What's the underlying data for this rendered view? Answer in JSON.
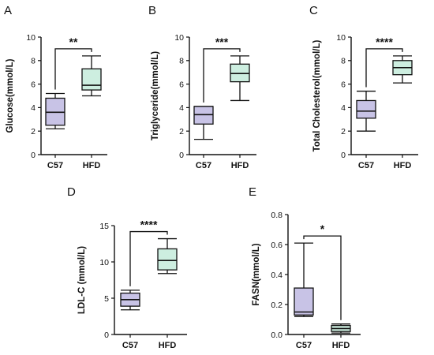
{
  "chart_data": [
    {
      "type": "box",
      "panel": "A",
      "ylabel": "Glucose(mmol/L)",
      "ylim": [
        0,
        10
      ],
      "yticks": [
        "0",
        "2",
        "4",
        "6",
        "8",
        "10"
      ],
      "categories": [
        "C57",
        "HFD"
      ],
      "boxes": [
        {
          "min": 2.2,
          "q1": 2.5,
          "median": 3.6,
          "q3": 4.8,
          "max": 5.2
        },
        {
          "min": 5.0,
          "q1": 5.5,
          "median": 5.9,
          "q3": 7.3,
          "max": 8.4
        }
      ],
      "significance": "**",
      "colors": [
        "#c8c3e6",
        "#cdeee0"
      ]
    },
    {
      "type": "box",
      "panel": "B",
      "ylabel": "Triglyceride(mmol/L)",
      "ylim": [
        0,
        10
      ],
      "yticks": [
        "0",
        "2",
        "4",
        "6",
        "8",
        "10"
      ],
      "categories": [
        "C57",
        "HFD"
      ],
      "boxes": [
        {
          "min": 1.3,
          "q1": 2.6,
          "median": 3.4,
          "q3": 4.1,
          "max": 4.1
        },
        {
          "min": 4.6,
          "q1": 6.2,
          "median": 6.9,
          "q3": 7.7,
          "max": 8.4
        }
      ],
      "significance": "***",
      "colors": [
        "#c8c3e6",
        "#cdeee0"
      ]
    },
    {
      "type": "box",
      "panel": "C",
      "ylabel": "Total Cholesterol(mmol/L)",
      "ylim": [
        0,
        10
      ],
      "yticks": [
        "0",
        "2",
        "4",
        "6",
        "8",
        "10"
      ],
      "categories": [
        "C57",
        "HFD"
      ],
      "boxes": [
        {
          "min": 2.0,
          "q1": 3.1,
          "median": 3.7,
          "q3": 4.6,
          "max": 5.4
        },
        {
          "min": 6.1,
          "q1": 6.8,
          "median": 7.4,
          "q3": 8.0,
          "max": 8.4
        }
      ],
      "significance": "****",
      "colors": [
        "#c8c3e6",
        "#cdeee0"
      ]
    },
    {
      "type": "box",
      "panel": "D",
      "ylabel": "LDL-C (mmol/L)",
      "ylim": [
        0,
        15
      ],
      "yticks": [
        "0",
        "5",
        "10",
        "15"
      ],
      "categories": [
        "C57",
        "HFD"
      ],
      "boxes": [
        {
          "min": 3.4,
          "q1": 3.9,
          "median": 4.8,
          "q3": 5.7,
          "max": 6.1
        },
        {
          "min": 8.4,
          "q1": 8.9,
          "median": 10.2,
          "q3": 11.8,
          "max": 13.2
        }
      ],
      "significance": "****",
      "colors": [
        "#c8c3e6",
        "#cdeee0"
      ]
    },
    {
      "type": "box",
      "panel": "E",
      "ylabel": "FASN(mmol/L)",
      "ylim": [
        0,
        0.8
      ],
      "yticks": [
        "0.0",
        "0.2",
        "0.4",
        "0.6",
        "0.8"
      ],
      "categories": [
        "C57",
        "HFD"
      ],
      "boxes": [
        {
          "min": 0.12,
          "q1": 0.13,
          "median": 0.15,
          "q3": 0.31,
          "max": 0.61
        },
        {
          "min": 0.01,
          "q1": 0.02,
          "median": 0.04,
          "q3": 0.06,
          "max": 0.07
        }
      ],
      "significance": "*",
      "colors": [
        "#c8c3e6",
        "#cdeee0"
      ]
    }
  ]
}
